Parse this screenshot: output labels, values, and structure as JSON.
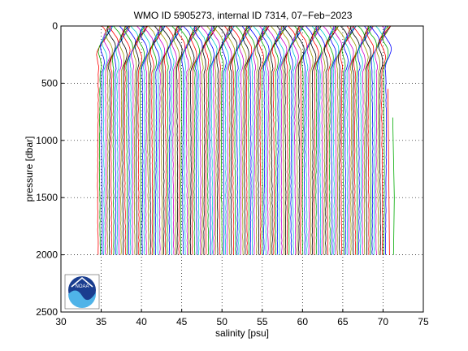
{
  "chart_data": {
    "type": "line",
    "title": "WMO ID 5905273, internal ID 7314, 07−Feb−2023",
    "xlabel": "salinity [psu]",
    "ylabel": "pressure [dbar]",
    "xlim": [
      30,
      75
    ],
    "ylim": [
      0,
      2500
    ],
    "y_reversed": true,
    "grid": "dotted",
    "xticks": [
      "30",
      "35",
      "40",
      "45",
      "50",
      "55",
      "60",
      "65",
      "70",
      "75"
    ],
    "yticks": [
      "0",
      "500",
      "1000",
      "1500",
      "2000",
      "2500"
    ],
    "profiles": {
      "description_of_encoding": "",
      "count": 150,
      "first_offset_salinity": 34.6,
      "offset_step": 0.24,
      "max_pressure": 2000,
      "colors": [
        "#ff0000",
        "#00aa00",
        "#0000ff",
        "#00cccc",
        "#cc00cc",
        "#999900",
        "#000000"
      ]
    },
    "logo": {
      "text": "NOAA",
      "position": "bottom-left"
    }
  }
}
